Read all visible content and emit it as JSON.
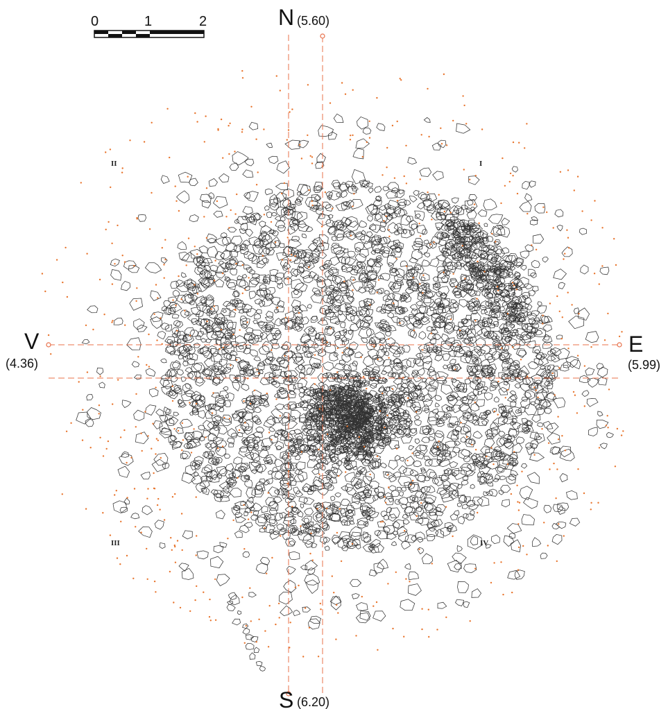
{
  "scale_bar": {
    "labels": [
      "0",
      "1",
      "2"
    ]
  },
  "directions": {
    "north": {
      "letter": "N",
      "value": "(5.60)"
    },
    "south": {
      "letter": "S",
      "value": "(6.20)"
    },
    "west": {
      "letter": "V",
      "value": "(4.36)"
    },
    "east": {
      "letter": "E",
      "value": "(5.99)"
    }
  },
  "quadrants": {
    "I": "I",
    "II": "II",
    "III": "III",
    "IV": "IV"
  },
  "colors": {
    "axis": "#e8704a",
    "stone_outline": "#333333",
    "dot": "#e8742c"
  }
}
